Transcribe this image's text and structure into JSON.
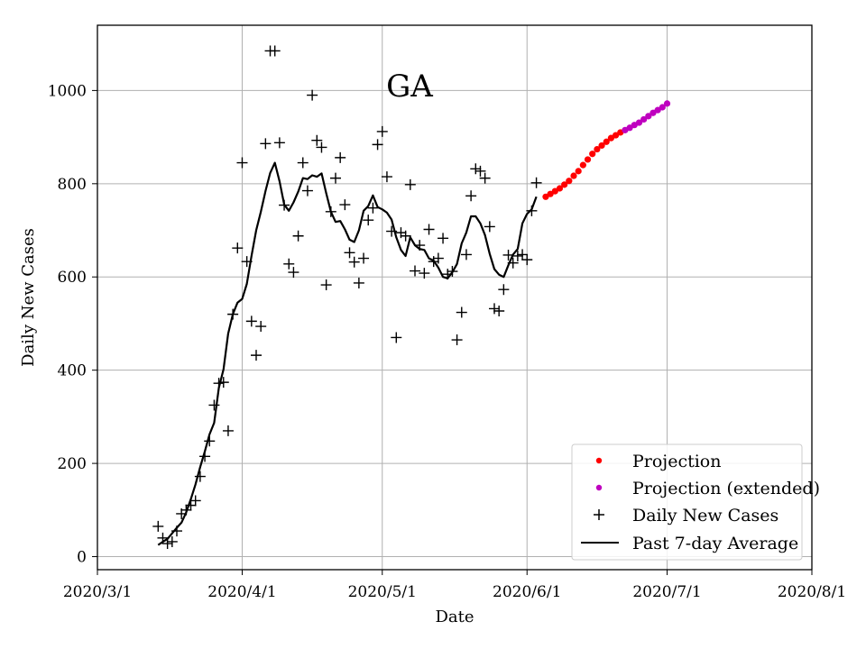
{
  "chart_data": {
    "type": "line",
    "title": "GA",
    "xlabel": "Date",
    "ylabel": "Daily New Cases",
    "grid": true,
    "legend_position": "lower-right",
    "x_is_day_offset_from": "2020-03-01",
    "xlim": [
      0,
      153
    ],
    "ylim": [
      -28,
      1140
    ],
    "x_ticks": [
      {
        "day": 0,
        "label": "2020/3/1"
      },
      {
        "day": 31,
        "label": "2020/4/1"
      },
      {
        "day": 61,
        "label": "2020/5/1"
      },
      {
        "day": 92,
        "label": "2020/6/1"
      },
      {
        "day": 122,
        "label": "2020/7/1"
      },
      {
        "day": 153,
        "label": "2020/8/1"
      }
    ],
    "y_ticks": [
      0,
      200,
      400,
      600,
      800,
      1000
    ],
    "legend": [
      {
        "name": "Projection",
        "marker": "dot",
        "color": "#ff0000"
      },
      {
        "name": "Projection (extended)",
        "marker": "dot",
        "color": "#bf00bf"
      },
      {
        "name": "Daily New Cases",
        "marker": "plus",
        "color": "#000000"
      },
      {
        "name": "Past 7-day Average",
        "marker": "line",
        "color": "#000000"
      }
    ],
    "series": [
      {
        "name": "Daily New Cases",
        "style": "plus",
        "color": "#000000",
        "x": [
          13,
          14,
          15,
          16,
          17,
          18,
          19,
          20,
          21,
          22,
          23,
          24,
          25,
          26,
          27,
          28,
          29,
          30,
          31,
          32,
          33,
          34,
          35,
          36,
          37,
          38,
          39,
          40,
          41,
          42,
          43,
          44,
          45,
          46,
          47,
          48,
          49,
          50,
          51,
          52,
          53,
          54,
          55,
          56,
          57,
          58,
          59,
          60,
          61,
          62,
          63,
          64,
          65,
          66,
          67,
          68,
          69,
          70,
          71,
          72,
          73,
          74,
          75,
          76,
          77,
          78,
          79,
          80,
          81,
          82,
          83,
          84,
          85,
          86,
          87,
          88,
          89,
          90,
          91,
          92,
          93,
          94
        ],
        "y": [
          65,
          40,
          28,
          32,
          55,
          92,
          100,
          110,
          120,
          172,
          215,
          248,
          325,
          372,
          374,
          270,
          520,
          662,
          845,
          633,
          505,
          432,
          494,
          886,
          1085,
          1085,
          888,
          754,
          628,
          610,
          688,
          845,
          785,
          990,
          893,
          878,
          583,
          740,
          812,
          856,
          755,
          652,
          632,
          587,
          640,
          722,
          748,
          884,
          912,
          815,
          698,
          470,
          695,
          688,
          798,
          613,
          668,
          608,
          702,
          633,
          640,
          683,
          606,
          612,
          465,
          524,
          648,
          774,
          832,
          827,
          812,
          708,
          532,
          527,
          573,
          647,
          630,
          645,
          648,
          637,
          742,
          802
        ]
      },
      {
        "name": "Past 7-day Average",
        "style": "line",
        "color": "#000000",
        "x": [
          13,
          14,
          15,
          16,
          17,
          18,
          19,
          20,
          21,
          22,
          23,
          24,
          25,
          26,
          27,
          28,
          29,
          30,
          31,
          32,
          33,
          34,
          35,
          36,
          37,
          38,
          39,
          40,
          41,
          42,
          43,
          44,
          45,
          46,
          47,
          48,
          49,
          50,
          51,
          52,
          53,
          54,
          55,
          56,
          57,
          58,
          59,
          60,
          61,
          62,
          63,
          64,
          65,
          66,
          67,
          68,
          69,
          70,
          71,
          72,
          73,
          74,
          75,
          76,
          77,
          78,
          79,
          80,
          81,
          82,
          83,
          84,
          85,
          86,
          87,
          88,
          89,
          90,
          91,
          92,
          93,
          94
        ],
        "y": [
          25,
          32,
          38,
          50,
          62,
          73,
          95,
          123,
          155,
          192,
          226,
          262,
          287,
          362,
          402,
          478,
          520,
          545,
          553,
          585,
          645,
          700,
          740,
          785,
          823,
          845,
          805,
          755,
          742,
          760,
          783,
          812,
          810,
          818,
          815,
          822,
          780,
          740,
          718,
          720,
          702,
          680,
          675,
          700,
          742,
          752,
          775,
          750,
          745,
          738,
          723,
          685,
          658,
          645,
          685,
          668,
          660,
          658,
          640,
          635,
          620,
          600,
          597,
          610,
          628,
          672,
          695,
          730,
          730,
          715,
          690,
          650,
          617,
          605,
          600,
          625,
          648,
          660,
          715,
          735,
          745,
          772
        ]
      },
      {
        "name": "Projection",
        "style": "dot",
        "color": "#ff0000",
        "x": [
          96,
          97,
          98,
          99,
          100,
          101,
          102,
          103,
          104,
          105,
          106,
          107,
          108,
          109,
          110,
          111,
          112
        ],
        "y": [
          772,
          778,
          784,
          790,
          798,
          806,
          817,
          827,
          840,
          852,
          864,
          874,
          882,
          890,
          898,
          904,
          910
        ]
      },
      {
        "name": "Projection (extended)",
        "style": "dot",
        "color": "#bf00bf",
        "x": [
          113,
          114,
          115,
          116,
          117,
          118,
          119,
          120,
          121,
          122
        ],
        "y": [
          915,
          920,
          926,
          931,
          938,
          945,
          952,
          958,
          964,
          972
        ]
      }
    ]
  }
}
